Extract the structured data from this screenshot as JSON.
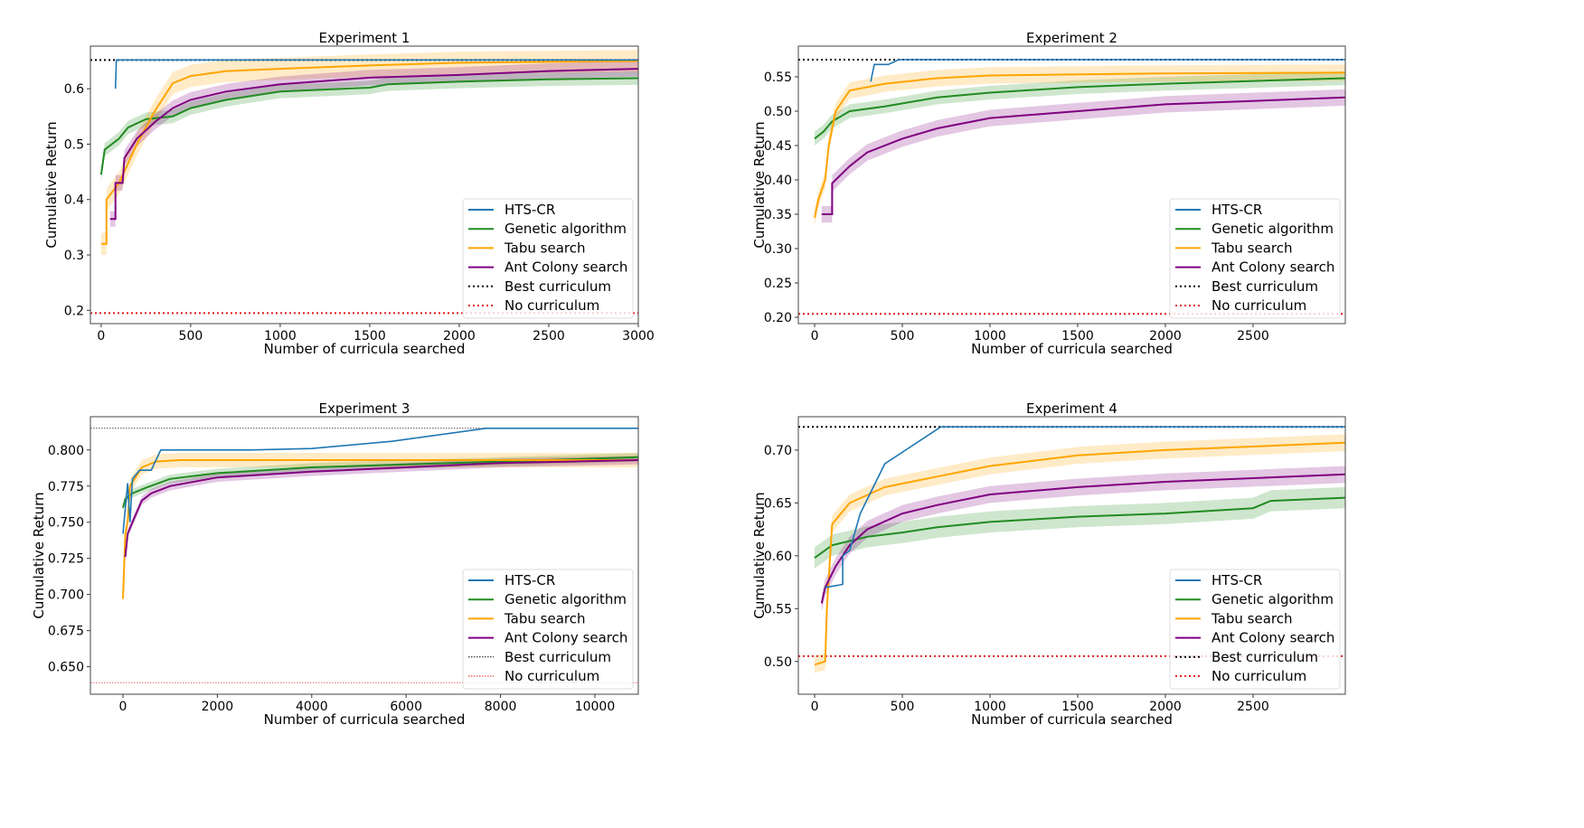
{
  "colors": {
    "HTS-CR": "#1f77b4",
    "Genetic algorithm": "#228b22",
    "Tabu search": "#ffa500",
    "Ant Colony search": "#800080",
    "Best curriculum": "#000000",
    "No curriculum": "#e41a1c"
  },
  "legend_placement": "lower-right",
  "chart_data": [
    {
      "type": "line",
      "title": "Experiment 1",
      "xlabel": "Number of curricula searched",
      "ylabel": "Cumulative Return",
      "xlim": [
        -60,
        3000
      ],
      "ylim": [
        0.176,
        0.677
      ],
      "xticks": [
        0,
        500,
        1000,
        1500,
        2000,
        2500,
        3000
      ],
      "xtick_labels": [
        "0",
        "500",
        "1000",
        "1500",
        "2000",
        "2500",
        "3000"
      ],
      "yticks": [
        0.2,
        0.3,
        0.4,
        0.5,
        0.6
      ],
      "ytick_labels": [
        "0.2",
        "0.3",
        "0.4",
        "0.5",
        "0.6"
      ],
      "hlines": [
        {
          "name": "Best curriculum",
          "y": 0.652
        },
        {
          "name": "No curriculum",
          "y": 0.195
        }
      ],
      "series": [
        {
          "name": "HTS-CR",
          "band": 0,
          "points": [
            [
              80,
              0.6
            ],
            [
              85,
              0.652
            ],
            [
              3000,
              0.652
            ]
          ]
        },
        {
          "name": "Genetic algorithm",
          "band": 0.012,
          "points": [
            [
              0,
              0.445
            ],
            [
              20,
              0.49
            ],
            [
              100,
              0.51
            ],
            [
              150,
              0.53
            ],
            [
              250,
              0.545
            ],
            [
              400,
              0.55
            ],
            [
              500,
              0.565
            ],
            [
              700,
              0.58
            ],
            [
              1000,
              0.595
            ],
            [
              1500,
              0.602
            ],
            [
              1600,
              0.608
            ],
            [
              2000,
              0.613
            ],
            [
              2500,
              0.617
            ],
            [
              3000,
              0.619
            ]
          ]
        },
        {
          "name": "Tabu search",
          "band": 0.02,
          "points": [
            [
              0,
              0.32
            ],
            [
              30,
              0.32
            ],
            [
              30,
              0.4
            ],
            [
              100,
              0.43
            ],
            [
              200,
              0.5
            ],
            [
              300,
              0.56
            ],
            [
              400,
              0.61
            ],
            [
              500,
              0.623
            ],
            [
              700,
              0.632
            ],
            [
              1000,
              0.636
            ],
            [
              1500,
              0.642
            ],
            [
              2000,
              0.647
            ],
            [
              3000,
              0.65
            ]
          ]
        },
        {
          "name": "Ant Colony search",
          "band": 0.014,
          "points": [
            [
              50,
              0.365
            ],
            [
              80,
              0.365
            ],
            [
              80,
              0.43
            ],
            [
              120,
              0.43
            ],
            [
              130,
              0.475
            ],
            [
              200,
              0.51
            ],
            [
              300,
              0.54
            ],
            [
              400,
              0.565
            ],
            [
              500,
              0.58
            ],
            [
              700,
              0.595
            ],
            [
              1000,
              0.608
            ],
            [
              1500,
              0.62
            ],
            [
              2000,
              0.625
            ],
            [
              2500,
              0.632
            ],
            [
              3000,
              0.636
            ]
          ]
        }
      ]
    },
    {
      "type": "line",
      "title": "Experiment 2",
      "xlabel": "Number of curricula searched",
      "ylabel": "Cumulative Return",
      "xlim": [
        -93,
        3026
      ],
      "ylim": [
        0.1908,
        0.5947
      ],
      "xticks": [
        0,
        500,
        1000,
        1500,
        2000,
        2500
      ],
      "xtick_labels": [
        "0",
        "500",
        "1000",
        "1500",
        "2000",
        "2500"
      ],
      "yticks": [
        0.2,
        0.25,
        0.3,
        0.35,
        0.4,
        0.45,
        0.5,
        0.55
      ],
      "ytick_labels": [
        "0.20",
        "0.25",
        "0.30",
        "0.35",
        "0.40",
        "0.45",
        "0.50",
        "0.55"
      ],
      "hlines": [
        {
          "name": "Best curriculum",
          "y": 0.575
        },
        {
          "name": "No curriculum",
          "y": 0.205
        }
      ],
      "series": [
        {
          "name": "HTS-CR",
          "band": 0,
          "points": [
            [
              320,
              0.543
            ],
            [
              340,
              0.568
            ],
            [
              420,
              0.568
            ],
            [
              480,
              0.575
            ],
            [
              3026,
              0.575
            ]
          ]
        },
        {
          "name": "Genetic algorithm",
          "band": 0.01,
          "points": [
            [
              0,
              0.46
            ],
            [
              50,
              0.47
            ],
            [
              100,
              0.485
            ],
            [
              200,
              0.5
            ],
            [
              400,
              0.507
            ],
            [
              700,
              0.52
            ],
            [
              1000,
              0.527
            ],
            [
              1500,
              0.535
            ],
            [
              2000,
              0.54
            ],
            [
              3026,
              0.548
            ]
          ]
        },
        {
          "name": "Tabu search",
          "band": 0.012,
          "points": [
            [
              0,
              0.345
            ],
            [
              20,
              0.37
            ],
            [
              60,
              0.4
            ],
            [
              80,
              0.45
            ],
            [
              120,
              0.5
            ],
            [
              200,
              0.53
            ],
            [
              400,
              0.54
            ],
            [
              700,
              0.548
            ],
            [
              1000,
              0.552
            ],
            [
              2000,
              0.555
            ],
            [
              3026,
              0.556
            ]
          ]
        },
        {
          "name": "Ant Colony search",
          "band": 0.012,
          "points": [
            [
              40,
              0.35
            ],
            [
              100,
              0.35
            ],
            [
              100,
              0.395
            ],
            [
              200,
              0.42
            ],
            [
              300,
              0.44
            ],
            [
              500,
              0.46
            ],
            [
              700,
              0.475
            ],
            [
              1000,
              0.49
            ],
            [
              1500,
              0.5
            ],
            [
              2000,
              0.51
            ],
            [
              3026,
              0.52
            ]
          ]
        }
      ]
    },
    {
      "type": "line",
      "title": "Experiment 3",
      "xlabel": "Number of curricula searched",
      "ylabel": "Cumulative Return",
      "xlim": [
        -690,
        10920
      ],
      "ylim": [
        0.631,
        0.823
      ],
      "xticks": [
        0,
        2000,
        4000,
        6000,
        8000,
        10000
      ],
      "xtick_labels": [
        "0",
        "2000",
        "4000",
        "6000",
        "8000",
        "10000"
      ],
      "yticks": [
        0.65,
        0.675,
        0.7,
        0.725,
        0.75,
        0.775,
        0.8
      ],
      "ytick_labels": [
        "0.650",
        "0.675",
        "0.700",
        "0.725",
        "0.750",
        "0.775",
        "0.800"
      ],
      "hlines": [
        {
          "name": "Best curriculum",
          "y": 0.815
        },
        {
          "name": "No curriculum",
          "y": 0.639
        }
      ],
      "thin_hlines": true,
      "series": [
        {
          "name": "HTS-CR",
          "band": 0,
          "points": [
            [
              0,
              0.742
            ],
            [
              100,
              0.777
            ],
            [
              150,
              0.75
            ],
            [
              200,
              0.78
            ],
            [
              350,
              0.786
            ],
            [
              600,
              0.786
            ],
            [
              800,
              0.8
            ],
            [
              2700,
              0.8
            ],
            [
              4000,
              0.801
            ],
            [
              5700,
              0.806
            ],
            [
              7700,
              0.815
            ],
            [
              10920,
              0.815
            ]
          ]
        },
        {
          "name": "Genetic algorithm",
          "band": 0.003,
          "points": [
            [
              0,
              0.76
            ],
            [
              50,
              0.766
            ],
            [
              200,
              0.77
            ],
            [
              500,
              0.774
            ],
            [
              1000,
              0.78
            ],
            [
              2000,
              0.784
            ],
            [
              4000,
              0.788
            ],
            [
              6000,
              0.79
            ],
            [
              8000,
              0.792
            ],
            [
              10920,
              0.795
            ]
          ]
        },
        {
          "name": "Tabu search",
          "band": 0.005,
          "points": [
            [
              0,
              0.697
            ],
            [
              50,
              0.742
            ],
            [
              100,
              0.75
            ],
            [
              150,
              0.775
            ],
            [
              400,
              0.788
            ],
            [
              700,
              0.792
            ],
            [
              1200,
              0.793
            ],
            [
              10920,
              0.793
            ]
          ]
        },
        {
          "name": "Ant Colony search",
          "band": 0.003,
          "points": [
            [
              50,
              0.726
            ],
            [
              100,
              0.742
            ],
            [
              200,
              0.75
            ],
            [
              400,
              0.765
            ],
            [
              600,
              0.77
            ],
            [
              1000,
              0.775
            ],
            [
              2000,
              0.781
            ],
            [
              4000,
              0.785
            ],
            [
              6000,
              0.788
            ],
            [
              8000,
              0.791
            ],
            [
              10920,
              0.793
            ]
          ]
        }
      ]
    },
    {
      "type": "line",
      "title": "Experiment 4",
      "xlabel": "Number of curricula searched",
      "ylabel": "Cumulative Return",
      "xlim": [
        -93,
        3026
      ],
      "ylim": [
        0.469,
        0.7316
      ],
      "xticks": [
        0,
        500,
        1000,
        1500,
        2000,
        2500
      ],
      "xtick_labels": [
        "0",
        "500",
        "1000",
        "1500",
        "2000",
        "2500"
      ],
      "yticks": [
        0.5,
        0.55,
        0.6,
        0.65,
        0.7
      ],
      "ytick_labels": [
        "0.50",
        "0.55",
        "0.60",
        "0.65",
        "0.70"
      ],
      "hlines": [
        {
          "name": "Best curriculum",
          "y": 0.722
        },
        {
          "name": "No curriculum",
          "y": 0.505
        }
      ],
      "series": [
        {
          "name": "HTS-CR",
          "band": 0,
          "points": [
            [
              60,
              0.57
            ],
            [
              130,
              0.572
            ],
            [
              160,
              0.573
            ],
            [
              160,
              0.6
            ],
            [
              200,
              0.605
            ],
            [
              260,
              0.64
            ],
            [
              400,
              0.687
            ],
            [
              720,
              0.722
            ],
            [
              3026,
              0.722
            ]
          ]
        },
        {
          "name": "Genetic algorithm",
          "band": 0.01,
          "points": [
            [
              0,
              0.598
            ],
            [
              100,
              0.61
            ],
            [
              300,
              0.618
            ],
            [
              500,
              0.622
            ],
            [
              700,
              0.627
            ],
            [
              1000,
              0.632
            ],
            [
              1500,
              0.637
            ],
            [
              2000,
              0.64
            ],
            [
              2500,
              0.645
            ],
            [
              2600,
              0.652
            ],
            [
              3026,
              0.655
            ]
          ]
        },
        {
          "name": "Tabu search",
          "band": 0.008,
          "points": [
            [
              0,
              0.497
            ],
            [
              60,
              0.5
            ],
            [
              70,
              0.55
            ],
            [
              100,
              0.63
            ],
            [
              200,
              0.65
            ],
            [
              400,
              0.665
            ],
            [
              700,
              0.675
            ],
            [
              1000,
              0.685
            ],
            [
              1500,
              0.695
            ],
            [
              2000,
              0.7
            ],
            [
              3026,
              0.707
            ]
          ]
        },
        {
          "name": "Ant Colony search",
          "band": 0.008,
          "points": [
            [
              40,
              0.555
            ],
            [
              60,
              0.57
            ],
            [
              120,
              0.59
            ],
            [
              200,
              0.61
            ],
            [
              300,
              0.625
            ],
            [
              500,
              0.64
            ],
            [
              700,
              0.648
            ],
            [
              1000,
              0.658
            ],
            [
              1500,
              0.665
            ],
            [
              2000,
              0.67
            ],
            [
              3026,
              0.677
            ]
          ]
        }
      ]
    }
  ],
  "legend_entries": [
    "HTS-CR",
    "Genetic algorithm",
    "Tabu search",
    "Ant Colony search",
    "Best curriculum",
    "No curriculum"
  ]
}
